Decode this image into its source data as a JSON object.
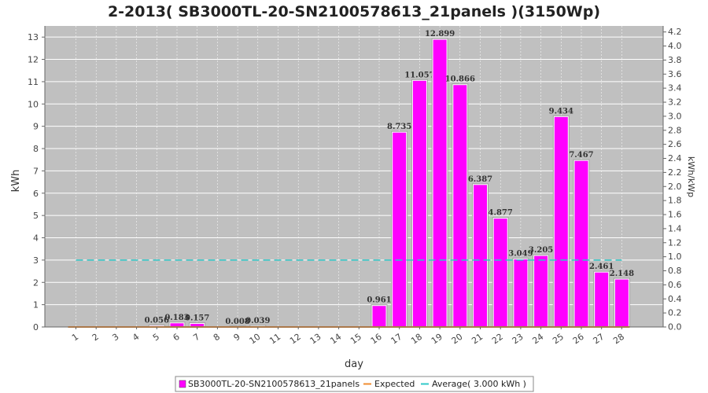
{
  "chart_data": {
    "type": "bar",
    "title": "2-2013( SB3000TL-20-SN2100578613_21panels )(3150Wp)",
    "xlabel": "day",
    "ylabel": "kWh",
    "ylabel_right": "kWh/kWp",
    "categories": [
      "1",
      "2",
      "3",
      "4",
      "5",
      "6",
      "7",
      "8",
      "9",
      "10",
      "11",
      "12",
      "13",
      "14",
      "15",
      "16",
      "17",
      "18",
      "19",
      "20",
      "21",
      "22",
      "23",
      "24",
      "25",
      "26",
      "27",
      "28"
    ],
    "ylim": [
      0,
      13.5
    ],
    "yticks": [
      0,
      1,
      2,
      3,
      4,
      5,
      6,
      7,
      8,
      9,
      10,
      11,
      12,
      13
    ],
    "ylim_right": [
      0,
      4.2857
    ],
    "yticks_right": [
      "0.0",
      "0.2",
      "0.4",
      "0.6",
      "0.8",
      "1.0",
      "1.2",
      "1.4",
      "1.6",
      "1.8",
      "2.0",
      "2.2",
      "2.4",
      "2.6",
      "2.8",
      "3.0",
      "3.2",
      "3.4",
      "3.6",
      "3.8",
      "4.0",
      "4.2"
    ],
    "series": [
      {
        "name": "SB3000TL-20-SN2100578613_21panels",
        "color": "#ff00ff",
        "values": [
          0,
          0,
          0,
          0,
          0.056,
          0.183,
          0.157,
          0,
          0.008,
          0.039,
          0,
          0,
          0,
          0,
          0,
          0.961,
          8.735,
          11.057,
          12.899,
          10.866,
          6.387,
          4.877,
          3.049,
          3.205,
          9.434,
          7.467,
          2.461,
          2.148
        ],
        "labels": [
          "",
          "",
          "",
          "",
          "0.056",
          "0.183",
          "0.157",
          "",
          "0.008",
          "0.039",
          "",
          "",
          "",
          "",
          "",
          "0.961",
          "8.735",
          "11.057",
          "12.899",
          "10.866",
          "6.387",
          "4.877",
          "3.049",
          "3.205",
          "9.434",
          "7.467",
          "2.461",
          "2.148"
        ]
      },
      {
        "name": "Expected",
        "color": "#f08c30",
        "values": [
          0,
          0,
          0,
          0,
          0,
          0,
          0,
          0,
          0,
          0,
          0,
          0,
          0,
          0,
          0,
          0,
          0,
          0,
          0,
          0,
          0,
          0,
          0,
          0,
          0,
          0,
          0,
          0
        ]
      },
      {
        "name": "Average( 3.000 kWh )",
        "color": "#30c8c8",
        "value": 3.0
      }
    ],
    "legend_position": "bottom",
    "grid": true
  }
}
